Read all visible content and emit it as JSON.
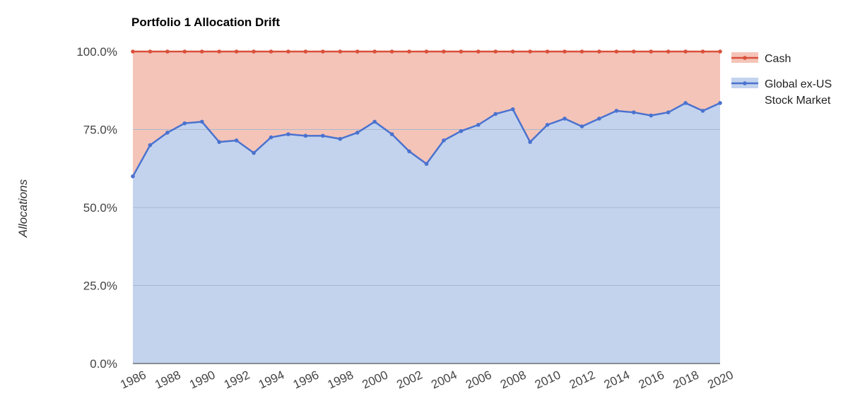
{
  "chart_data": {
    "type": "area",
    "title": "Portfolio 1 Allocation Drift",
    "xlabel": "",
    "ylabel": "Allocations",
    "x": [
      1986,
      1987,
      1988,
      1989,
      1990,
      1991,
      1992,
      1993,
      1994,
      1995,
      1996,
      1997,
      1998,
      1999,
      2000,
      2001,
      2002,
      2003,
      2004,
      2005,
      2006,
      2007,
      2008,
      2009,
      2010,
      2011,
      2012,
      2013,
      2014,
      2015,
      2016,
      2017,
      2018,
      2019,
      2020
    ],
    "x_tick_labels": [
      "1986",
      "1988",
      "1990",
      "1992",
      "1994",
      "1996",
      "1998",
      "2000",
      "2002",
      "2004",
      "2006",
      "2008",
      "2010",
      "2012",
      "2014",
      "2016",
      "2018",
      "2020"
    ],
    "ylim": [
      0,
      100
    ],
    "y_tick_labels": [
      "0.0%",
      "25.0%",
      "50.0%",
      "75.0%",
      "100.0%"
    ],
    "stacked": true,
    "series": [
      {
        "name": "Global ex-US Stock Market",
        "line_color": "#4a72cf",
        "fill_color": "#c3d3ee",
        "values": [
          60,
          70,
          74,
          77,
          77.5,
          71,
          71.5,
          67.5,
          72.5,
          73.5,
          73,
          73,
          72,
          74,
          77.5,
          73.5,
          68,
          64,
          71.5,
          74.5,
          76.5,
          80,
          81.5,
          71,
          76.5,
          78.5,
          76,
          78.5,
          81,
          80.5,
          79.5,
          80.5,
          83.5,
          81,
          83.5
        ]
      },
      {
        "name": "Cash",
        "line_color": "#d9503a",
        "fill_color": "#f4c4b8",
        "values": [
          40,
          30,
          26,
          23,
          22.5,
          29,
          28.5,
          32.5,
          27.5,
          26.5,
          27,
          27,
          28,
          26,
          22.5,
          26.5,
          32,
          36,
          28.5,
          25.5,
          23.5,
          20,
          18.5,
          29,
          23.5,
          21.5,
          24,
          21.5,
          19,
          19.5,
          20.5,
          19.5,
          16.5,
          19,
          16.5
        ]
      }
    ],
    "grid": true,
    "legend_position": "right",
    "legend": [
      {
        "name": "Cash",
        "label_lines": [
          "Cash"
        ]
      },
      {
        "name": "Global ex-US Stock Market",
        "label_lines": [
          "Global ex-US",
          "Stock Market"
        ]
      }
    ]
  }
}
